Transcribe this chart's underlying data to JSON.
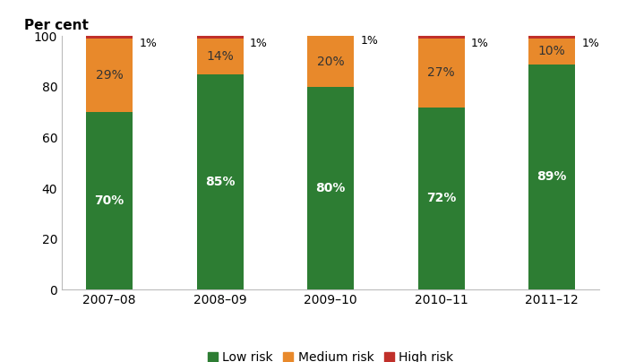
{
  "categories": [
    "2007–08",
    "2008–09",
    "2009–10",
    "2010–11",
    "2011–12"
  ],
  "low_risk": [
    70,
    85,
    80,
    72,
    89
  ],
  "medium_risk": [
    29,
    14,
    20,
    27,
    10
  ],
  "high_risk": [
    1,
    1,
    1,
    1,
    1
  ],
  "low_risk_color": "#2d7d33",
  "medium_risk_color": "#e8892b",
  "high_risk_color": "#c0302a",
  "ylabel": "Per cent",
  "ylim": [
    0,
    100
  ],
  "yticks": [
    0,
    20,
    40,
    60,
    80,
    100
  ],
  "bar_width": 0.42,
  "legend_labels": [
    "Low risk",
    "Medium risk",
    "High risk"
  ],
  "low_label_color": "white",
  "medium_label_color": "#333333",
  "label_fontsize": 10,
  "tick_fontsize": 10,
  "background_color": "#ffffff"
}
